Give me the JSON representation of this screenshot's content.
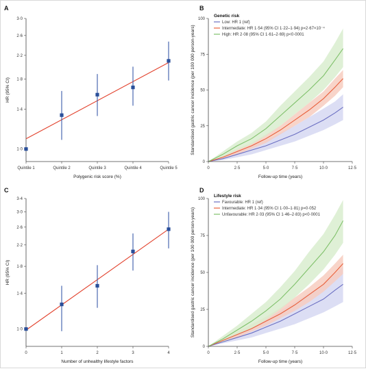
{
  "chart_data": [
    {
      "panel": "A",
      "type": "scatter",
      "x_is_categorical": true,
      "categories": [
        "Quintile 1",
        "Quintile 2",
        "Quintile 3",
        "Quintile 4",
        "Quintile 5"
      ],
      "values": [
        1.0,
        1.33,
        1.58,
        1.68,
        2.1
      ],
      "ci_low": [
        1.0,
        1.08,
        1.32,
        1.44,
        1.78
      ],
      "ci_high": [
        1.0,
        1.63,
        1.88,
        2.0,
        2.47
      ],
      "fit_line": [
        [
          0,
          1.09
        ],
        [
          4,
          2.07
        ]
      ],
      "xlabel": "Polygenic risk score (%)",
      "ylabel": "HR (95% CI)",
      "yticks": [
        1.0,
        1.4,
        1.8,
        2.2,
        2.6,
        3.0
      ],
      "ytick_labels": [
        "1·0",
        "1·4",
        "1·8",
        "2·2",
        "2·6",
        "3·0"
      ],
      "yscale": "log",
      "ylim": [
        0.9,
        3.0
      ]
    },
    {
      "panel": "B",
      "type": "line",
      "legend_title": "Genetic risk",
      "legend_position": "top-left",
      "xlabel": "Follow-up time (years)",
      "ylabel": "Standardised gastric cancer incidence (per 100 000 person-years)",
      "xlim": [
        0,
        12.5
      ],
      "ylim": [
        0,
        100
      ],
      "xticks": [
        0,
        2.5,
        5.0,
        7.5,
        10.0,
        12.5
      ],
      "xtick_labels": [
        "0",
        "2·5",
        "5·0",
        "7·5",
        "10·0",
        "12·5"
      ],
      "yticks": [
        0,
        25,
        50,
        75,
        100
      ],
      "ytick_labels": [
        "0",
        "25",
        "50",
        "75",
        "100"
      ],
      "x": [
        0,
        1.25,
        2.5,
        3.75,
        5.0,
        6.25,
        7.5,
        8.75,
        10.0,
        11.0,
        11.7
      ],
      "series": [
        {
          "name": "Low: HR 1 (ref)",
          "color": "#6b6fc2",
          "band": "#d6d8f2",
          "values": [
            0,
            2,
            5,
            8,
            11,
            15,
            19,
            24,
            29,
            34,
            38
          ],
          "ci_low": [
            0,
            1,
            3,
            5,
            8,
            11,
            14,
            18,
            22,
            26,
            29
          ],
          "ci_high": [
            0,
            3,
            7,
            11,
            15,
            20,
            25,
            31,
            37,
            42,
            47
          ]
        },
        {
          "name": "Intermediate: HR 1·54 (95% CI 1·22–1·94) p=2·67×10⁻⁴",
          "color": "#e8603c",
          "band": "#f7cdbf",
          "values": [
            0,
            3,
            7,
            11,
            16,
            22,
            29,
            36,
            44,
            52,
            58
          ],
          "ci_low": [
            0,
            2,
            5,
            9,
            13,
            19,
            25,
            31,
            39,
            46,
            52
          ],
          "ci_high": [
            0,
            4,
            9,
            13,
            19,
            25,
            33,
            41,
            49,
            58,
            64
          ]
        },
        {
          "name": "High: HR 2·08 (95% CI 1·61–2·69) p<0·0001",
          "color": "#7fc06a",
          "band": "#d9edcf",
          "values": [
            0,
            5,
            11,
            16,
            23,
            32,
            41,
            50,
            60,
            71,
            79
          ],
          "ci_low": [
            0,
            3,
            8,
            12,
            18,
            25,
            33,
            41,
            50,
            59,
            66
          ],
          "ci_high": [
            0,
            7,
            14,
            20,
            28,
            39,
            49,
            59,
            70,
            83,
            93
          ]
        }
      ]
    },
    {
      "panel": "C",
      "type": "scatter",
      "x": [
        0,
        1,
        2,
        3,
        4
      ],
      "xticks": [
        0,
        1,
        2,
        3,
        4
      ],
      "xtick_labels": [
        "0",
        "1",
        "2",
        "3",
        "4"
      ],
      "values": [
        1.0,
        1.26,
        1.5,
        2.07,
        2.55
      ],
      "ci_low": [
        1.0,
        0.98,
        1.22,
        1.73,
        2.13
      ],
      "ci_high": [
        1.0,
        1.5,
        1.82,
        2.45,
        3.0
      ],
      "fit_line": [
        [
          0,
          0.99
        ],
        [
          4,
          2.55
        ]
      ],
      "xlabel": "Number of unhealthy lifestyle factors",
      "ylabel": "HR (95% CI)",
      "yticks": [
        1.0,
        1.4,
        1.8,
        2.2,
        2.6,
        3.0,
        3.4
      ],
      "ytick_labels": [
        "1·0",
        "1·4",
        "1·8",
        "2·2",
        "2·6",
        "3·0",
        "3·4"
      ],
      "yscale": "log",
      "ylim": [
        0.85,
        3.4
      ]
    },
    {
      "panel": "D",
      "type": "line",
      "legend_title": "Lifestyle risk",
      "legend_position": "top-left",
      "xlabel": "Follow-up time (years)",
      "ylabel": "Standardised gastric cancer incidence (per 100 000 person-years)",
      "xlim": [
        0,
        12.5
      ],
      "ylim": [
        0,
        100
      ],
      "xticks": [
        0,
        2.5,
        5.0,
        7.5,
        10.0,
        12.5
      ],
      "xtick_labels": [
        "0",
        "2·5",
        "5·0",
        "7·5",
        "10·0",
        "12·5"
      ],
      "yticks": [
        0,
        25,
        50,
        75,
        100
      ],
      "ytick_labels": [
        "0",
        "25",
        "50",
        "75",
        "100"
      ],
      "x": [
        0,
        1.25,
        2.5,
        3.75,
        5.0,
        6.25,
        7.5,
        8.75,
        10.0,
        11.0,
        11.7
      ],
      "series": [
        {
          "name": "Favourable: HR 1 (ref)",
          "color": "#6b6fc2",
          "band": "#d6d8f2",
          "values": [
            0,
            3,
            6,
            9,
            13,
            17,
            22,
            27,
            32,
            38,
            42
          ],
          "ci_low": [
            0,
            2,
            4,
            6,
            9,
            12,
            15,
            19,
            23,
            27,
            30
          ],
          "ci_high": [
            0,
            5,
            9,
            13,
            18,
            24,
            30,
            36,
            42,
            49,
            54
          ]
        },
        {
          "name": "Intermediate: HR 1·34 (95% CI 1·00–1·81) p=0·052",
          "color": "#e8603c",
          "band": "#f7cdbf",
          "values": [
            0,
            4,
            8,
            12,
            17,
            22,
            28,
            35,
            42,
            50,
            56
          ],
          "ci_low": [
            0,
            3,
            6,
            10,
            14,
            19,
            24,
            30,
            37,
            44,
            49
          ],
          "ci_high": [
            0,
            5,
            10,
            15,
            20,
            26,
            33,
            40,
            48,
            56,
            62
          ]
        },
        {
          "name": "Unfavourable: HR 2·03 (95% CI 1·46–2·83) p<0·0001",
          "color": "#7fc06a",
          "band": "#d9edcf",
          "values": [
            0,
            5,
            11,
            17,
            24,
            32,
            42,
            53,
            64,
            75,
            85
          ],
          "ci_low": [
            0,
            3,
            8,
            12,
            18,
            25,
            33,
            42,
            52,
            62,
            70
          ],
          "ci_high": [
            0,
            7,
            14,
            22,
            30,
            40,
            51,
            64,
            76,
            89,
            99
          ]
        }
      ]
    }
  ],
  "marker_color": "#2a4f9a",
  "fit_color": "#e2412c",
  "errorbar_color": "#3a5aa8"
}
